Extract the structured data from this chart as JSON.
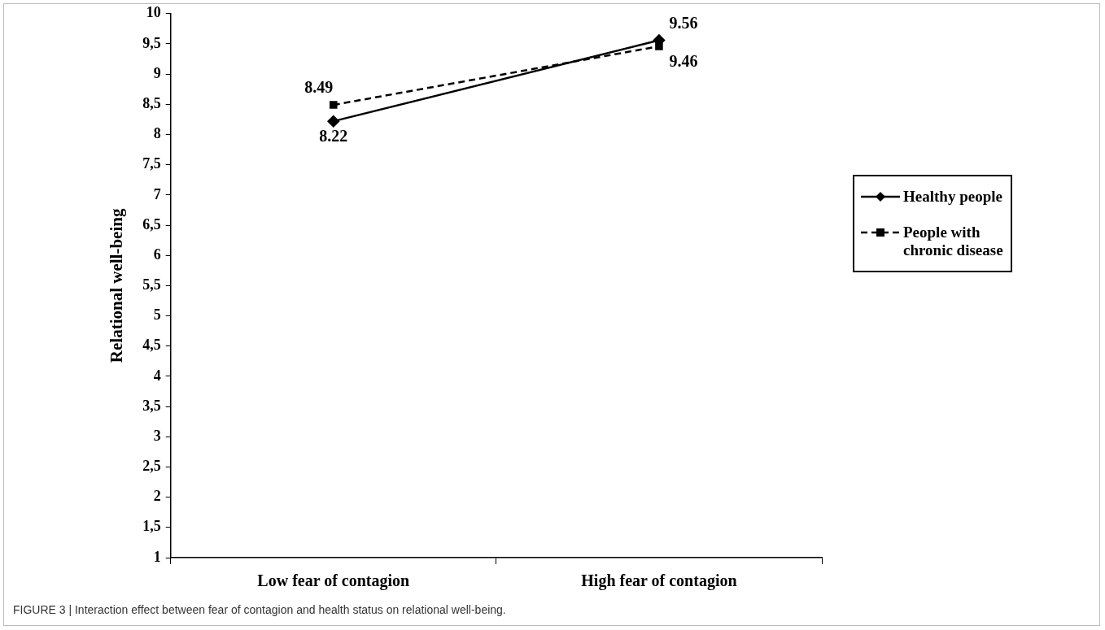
{
  "chart_data": {
    "type": "line",
    "ylabel": "Relational well-being",
    "categories": [
      "Low fear of contagion",
      "High fear of contagion"
    ],
    "series": [
      {
        "name": "Healthy people",
        "color": "#000000",
        "values": [
          8.22,
          9.56
        ],
        "marker": "diamond",
        "line_style": "solid"
      },
      {
        "name": "People with chronic disease",
        "color": "#000000",
        "values": [
          8.49,
          9.46
        ],
        "marker": "square",
        "line_style": "dashed"
      }
    ],
    "ylim": [
      1,
      10
    ],
    "yticks": [
      1,
      {
        "value": 1.5,
        "label": "1,5"
      },
      2,
      {
        "value": 2.5,
        "label": "2,5"
      },
      3,
      {
        "value": 3.5,
        "label": "3,5"
      },
      4,
      {
        "value": 4.5,
        "label": "4,5"
      },
      5,
      {
        "value": 5.5,
        "label": "5,5"
      },
      6,
      {
        "value": 6.5,
        "label": "6,5"
      },
      7,
      {
        "value": 7.5,
        "label": "7,5"
      },
      8,
      {
        "value": 8.5,
        "label": "8,5"
      },
      9,
      {
        "value": 9.5,
        "label": "9,5"
      },
      10
    ],
    "grid": false,
    "legend": "right",
    "data_labels": true,
    "annotations": [
      "FIGURE 3 | Interaction effect between fear of contagion and health status on relational well-being."
    ]
  }
}
